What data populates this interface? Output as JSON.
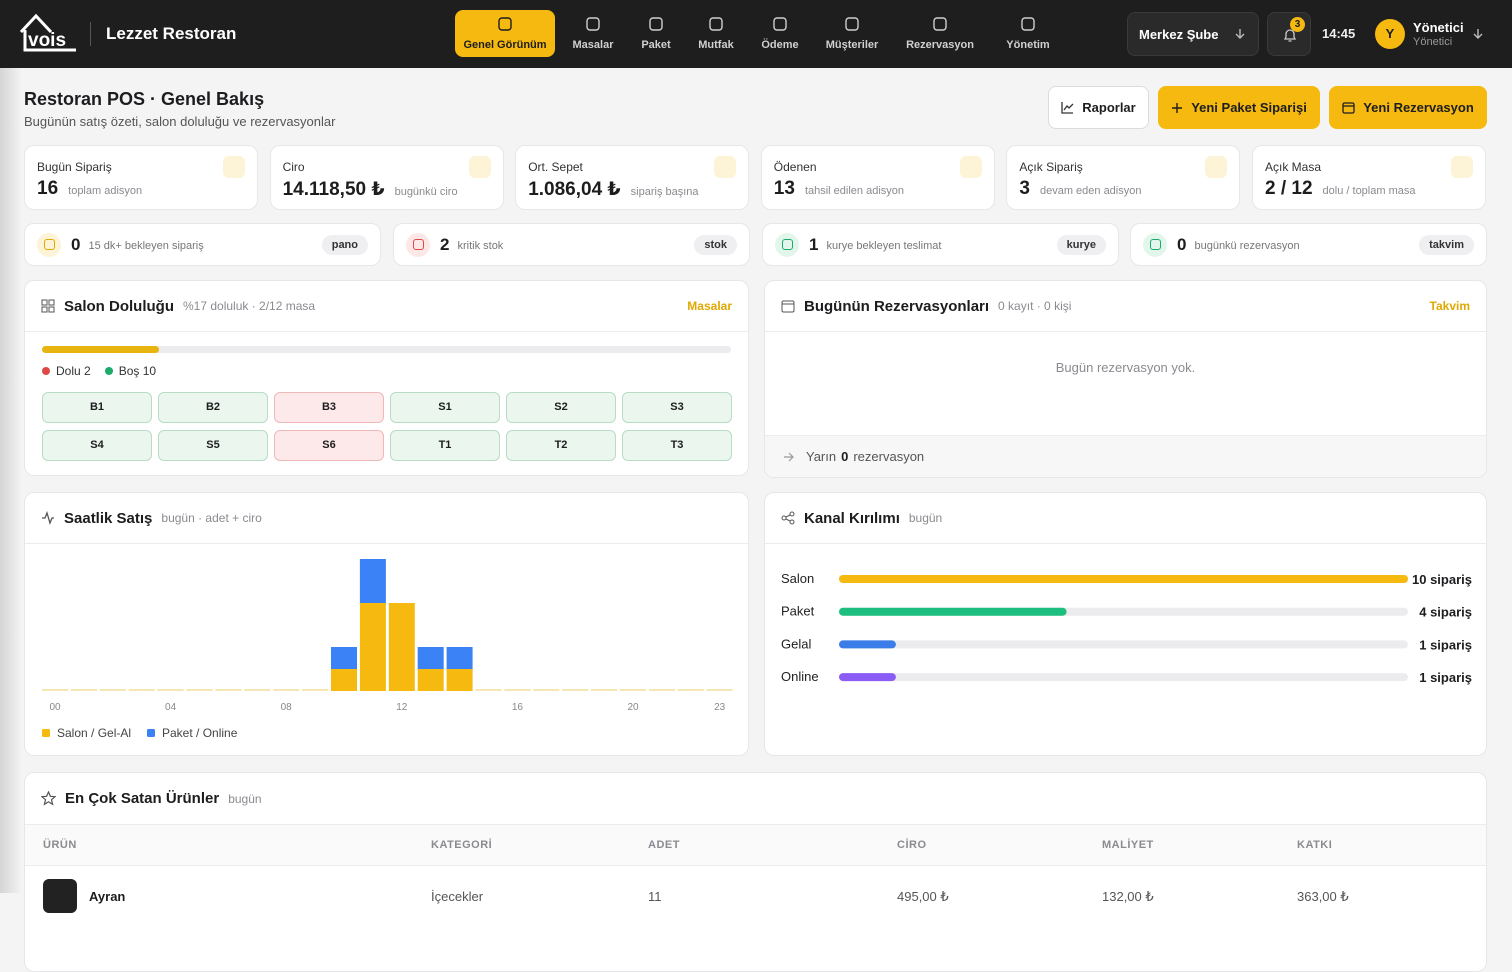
{
  "header": {
    "logo": "vois",
    "brand": "Lezzet Restoran",
    "nav": [
      "Genel Görünüm",
      "Masalar",
      "Paket",
      "Mutfak",
      "Ödeme",
      "Müşteriler",
      "Rezervasyon",
      "Yönetim"
    ],
    "branch": "Merkez Şube",
    "notifications": 3,
    "time": "14:45",
    "avatar": "Y",
    "user": "Yönetici",
    "role": "Yönetici"
  },
  "page": {
    "title": "Restoran POS · Genel Bakış",
    "subtitle": "Bugünün satış özeti, salon doluluğu ve rezervasyonlar",
    "actions": [
      "Raporlar",
      "Yeni Paket Siparişi",
      "Yeni Rezervasyon"
    ]
  },
  "stats": [
    {
      "label": "Bugün Sipariş",
      "value": 16,
      "note": "toplam adisyon"
    },
    {
      "label": "Ciro",
      "value": "14.118,50 ₺",
      "note": "bugünkü ciro"
    },
    {
      "label": "Ort. Sepet",
      "value": "1.086,04 ₺",
      "note": "sipariş başına"
    },
    {
      "label": "Ödenen",
      "value": 13,
      "note": "tahsil edilen adisyon"
    },
    {
      "label": "Açık Sipariş",
      "value": 3,
      "note": "devam eden adisyon"
    },
    {
      "label": "Açık Masa",
      "value": "2 / 12",
      "note": "dolu / toplam masa"
    }
  ],
  "alerts": [
    {
      "value": 0,
      "text": "15 dk+ bekleyen sipariş",
      "tag": "pano"
    },
    {
      "value": 2,
      "text": "kritik stok",
      "tag": "stok"
    },
    {
      "value": 1,
      "text": "kurye bekleyen teslimat",
      "tag": "kurye"
    },
    {
      "value": 0,
      "text": "bugünkü rezervasyon",
      "tag": "takvim"
    }
  ],
  "salon": {
    "title": "Salon Doluluğu",
    "meta": "%17 doluluk · 2/12 masa",
    "link": "Masalar",
    "occupancy": 17,
    "legend": [
      "Dolu 2",
      "Boş 10"
    ],
    "tables": [
      {
        "name": "B1",
        "occupied": false
      },
      {
        "name": "B2",
        "occupied": false
      },
      {
        "name": "B3",
        "occupied": true
      },
      {
        "name": "S1",
        "occupied": false
      },
      {
        "name": "S2",
        "occupied": false
      },
      {
        "name": "S3",
        "occupied": false
      },
      {
        "name": "S4",
        "occupied": false
      },
      {
        "name": "S5",
        "occupied": false
      },
      {
        "name": "S6",
        "occupied": true
      },
      {
        "name": "T1",
        "occupied": false
      },
      {
        "name": "T2",
        "occupied": false
      },
      {
        "name": "T3",
        "occupied": false
      }
    ]
  },
  "reservations": {
    "title": "Bugünün Rezervasyonları",
    "meta": "0 kayıt · 0 kişi",
    "link": "Takvim",
    "empty": "Bugün rezervasyon yok.",
    "tomorrow": {
      "prefix": "Yarın",
      "count": 0,
      "suffix": "rezervasyon"
    }
  },
  "chart_data": [
    {
      "type": "bar",
      "stacked": true,
      "title": "Saatlik Satış",
      "subtitle": "bugün · adet + ciro",
      "categories": [
        "00",
        null,
        null,
        null,
        "04",
        null,
        null,
        null,
        "08",
        null,
        null,
        null,
        "12",
        null,
        null,
        null,
        "16",
        null,
        null,
        null,
        "20",
        null,
        null,
        "23"
      ],
      "series": [
        {
          "name": "Salon / Gel-Al",
          "color": "#f5b90f",
          "values": [
            0,
            0,
            0,
            0,
            0,
            0,
            0,
            0,
            0,
            0,
            1,
            4,
            4,
            1,
            1,
            0,
            0,
            0,
            0,
            0,
            0,
            0,
            0,
            0
          ]
        },
        {
          "name": "Paket / Online",
          "color": "#3b82f6",
          "values": [
            0,
            0,
            0,
            0,
            0,
            0,
            0,
            0,
            0,
            0,
            1,
            2,
            0,
            1,
            1,
            0,
            0,
            0,
            0,
            0,
            0,
            0,
            0,
            0
          ]
        }
      ],
      "ylim": [
        0,
        6
      ]
    },
    {
      "type": "hbar",
      "title": "Kanal Kırılımı",
      "subtitle": "bugün",
      "categories": [
        "Salon",
        "Paket",
        "Gelal",
        "Online"
      ],
      "values": [
        10,
        4,
        1,
        1
      ],
      "value_labels": [
        "10 sipariş",
        "4 sipariş",
        "1 sipariş",
        "1 sipariş"
      ],
      "colors": [
        "#f5b90f",
        "#1dbf7f",
        "#3b7de8",
        "#8b5cf6"
      ],
      "xlim": [
        0,
        10
      ]
    }
  ],
  "products": {
    "title": "En Çok Satan Ürünler",
    "subtitle": "bugün",
    "columns": [
      "ÜRÜN",
      "KATEGORİ",
      "ADET",
      "CİRO",
      "MALİYET",
      "KATKI"
    ],
    "rows": [
      [
        "Ayran",
        "İçecekler",
        11,
        "495,00 ₺",
        "132,00 ₺",
        "363,00 ₺"
      ]
    ]
  }
}
